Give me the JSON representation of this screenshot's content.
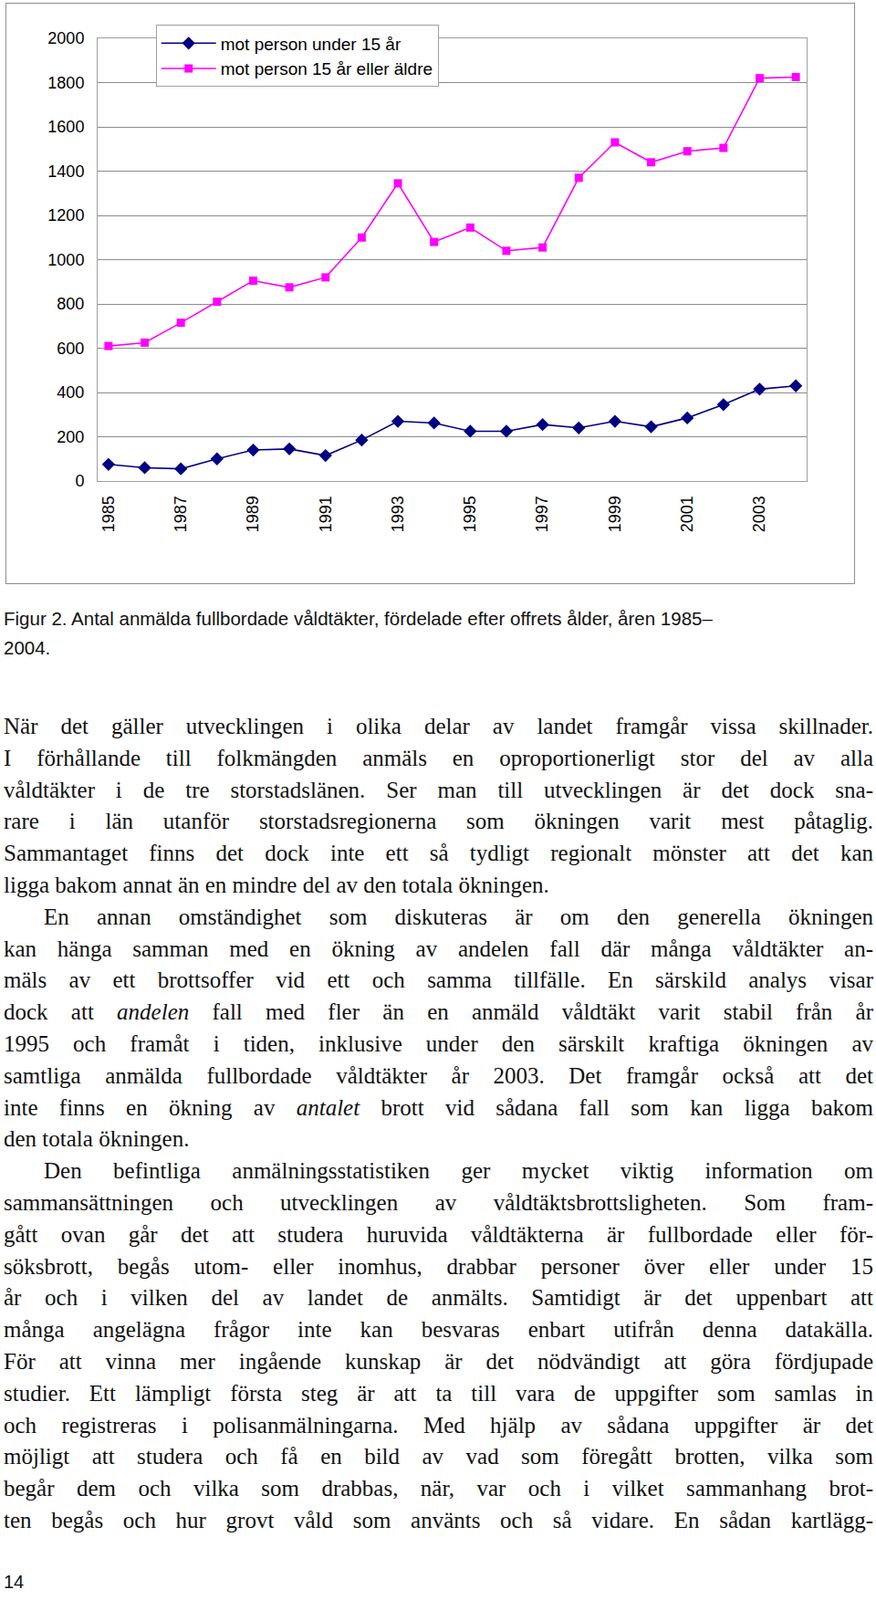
{
  "chart_data": {
    "type": "line",
    "x": [
      1985,
      1986,
      1987,
      1988,
      1989,
      1990,
      1991,
      1992,
      1993,
      1994,
      1995,
      1996,
      1997,
      1998,
      1999,
      2000,
      2001,
      2002,
      2003,
      2004
    ],
    "series": [
      {
        "name": "mot person under 15 år",
        "color": "#000080",
        "marker": "diamond",
        "values": [
          75,
          60,
          55,
          100,
          140,
          145,
          115,
          185,
          270,
          262,
          225,
          225,
          255,
          240,
          270,
          245,
          285,
          345,
          415,
          430
        ]
      },
      {
        "name": "mot person 15 år eller äldre",
        "color": "#ff00ff",
        "marker": "square",
        "values": [
          610,
          625,
          715,
          810,
          905,
          875,
          920,
          1100,
          1345,
          1080,
          1145,
          1040,
          1055,
          1370,
          1530,
          1440,
          1490,
          1505,
          1820,
          1825
        ]
      }
    ],
    "xlim": [
      1984.7,
      2004.3
    ],
    "xticks": [
      1985,
      1987,
      1989,
      1991,
      1993,
      1995,
      1997,
      1999,
      2001,
      2003
    ],
    "ylim": [
      0,
      2000
    ],
    "yticks": [
      0,
      200,
      400,
      600,
      800,
      1000,
      1200,
      1400,
      1600,
      1800,
      2000
    ],
    "grid": true,
    "legend": "upper left"
  },
  "caption": [
    "Figur 2. Antal anmälda fullbordade våldtäkter, fördelade efter offrets ålder, åren 1985–",
    "2004."
  ],
  "paragraphs": [
    [
      [
        "När det gäller utvecklingen i olika delar av landet framgår vissa skillnader."
      ],
      [
        "I förhållande till folkmängden anmäls en oproportionerligt stor del av alla"
      ],
      [
        "våldtäkter i de tre storstadslänen. Ser man till utvecklingen är det dock sna-"
      ],
      [
        "rare i län utanför storstadsregionerna som ökningen varit mest påtaglig."
      ],
      [
        "Sammantaget finns det dock inte ett så tydligt regionalt mönster att det kan"
      ],
      [
        "ligga bakom annat än en mindre del av den totala ökningen."
      ]
    ],
    [
      [
        "En annan omständighet som diskuteras är om den generella ökningen"
      ],
      [
        "kan hänga samman med en ökning av andelen fall där många våldtäkter an-"
      ],
      [
        "mäls av ett brottsoffer vid ett och samma tillfälle. En särskild analys visar"
      ],
      [
        "dock att ",
        {
          "italic": "andelen"
        },
        " fall med fler än en anmäld våldtäkt varit stabil från år"
      ],
      [
        "1995 och framåt i tiden, inklusive under den särskilt kraftiga ökningen av"
      ],
      [
        "samtliga anmälda fullbordade våldtäkter år 2003. Det framgår också att det"
      ],
      [
        "inte finns en ökning av ",
        {
          "italic": "antalet"
        },
        " brott vid sådana fall som kan ligga bakom"
      ],
      [
        "den totala ökningen."
      ]
    ],
    [
      [
        "Den befintliga anmälningsstatistiken ger mycket viktig information om"
      ],
      [
        "sammansättningen och utvecklingen av våldtäktsbrottsligheten. Som fram-"
      ],
      [
        "gått ovan går det att studera huruvida våldtäkterna är fullbordade eller för-"
      ],
      [
        "söksbrott, begås utom- eller inomhus, drabbar personer över eller under 15"
      ],
      [
        "år och i vilken del av landet de anmälts. Samtidigt är det uppenbart att"
      ],
      [
        "många angelägna frågor inte kan besvaras enbart utifrån denna datakälla."
      ],
      [
        "För att vinna mer ingående kunskap är det nödvändigt att göra fördjupade"
      ],
      [
        "studier. Ett lämpligt första steg är att ta till vara de uppgifter som samlas in"
      ],
      [
        "och registreras i polisanmälningarna. Med hjälp av sådana uppgifter är det"
      ],
      [
        "möjligt att studera och få en bild av vad som föregått brotten, vilka som"
      ],
      [
        "begår dem och vilka som drabbas, när, var och i vilket sammanhang brot-"
      ],
      [
        "ten begås och hur grovt våld som använts och så vidare. En sådan kartlägg-"
      ]
    ]
  ],
  "page_number": 14
}
